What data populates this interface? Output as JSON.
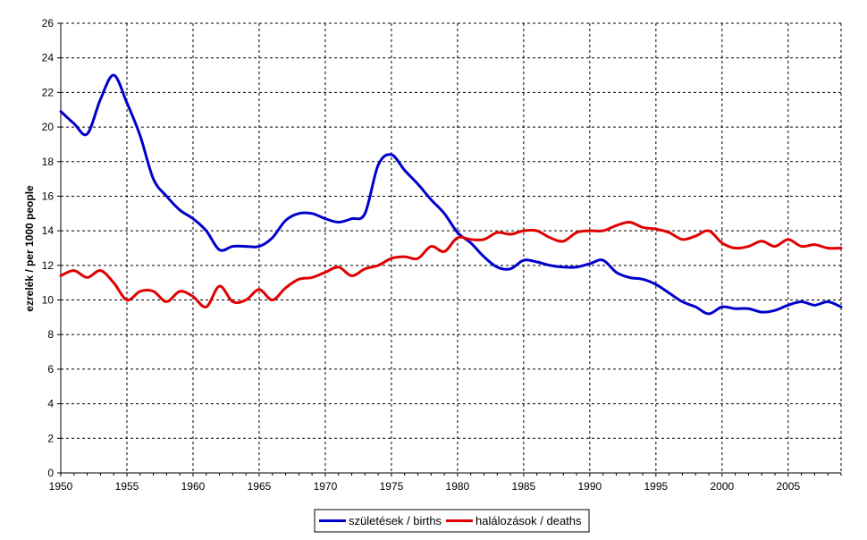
{
  "chart_data": {
    "type": "line",
    "title": "",
    "xlabel": "",
    "ylabel": "ezrelék / per 1000 people",
    "xlim": [
      1950,
      2009
    ],
    "ylim": [
      0,
      26
    ],
    "x_ticks": [
      1950,
      1955,
      1960,
      1965,
      1970,
      1975,
      1980,
      1985,
      1990,
      1995,
      2000,
      2005
    ],
    "y_ticks": [
      0,
      2,
      4,
      6,
      8,
      10,
      12,
      14,
      16,
      18,
      20,
      22,
      24,
      26
    ],
    "grid": true,
    "legend_position": "bottom",
    "x": [
      1950,
      1951,
      1952,
      1953,
      1954,
      1955,
      1956,
      1957,
      1958,
      1959,
      1960,
      1961,
      1962,
      1963,
      1964,
      1965,
      1966,
      1967,
      1968,
      1969,
      1970,
      1971,
      1972,
      1973,
      1974,
      1975,
      1976,
      1977,
      1978,
      1979,
      1980,
      1981,
      1982,
      1983,
      1984,
      1985,
      1986,
      1987,
      1988,
      1989,
      1990,
      1991,
      1992,
      1993,
      1994,
      1995,
      1996,
      1997,
      1998,
      1999,
      2000,
      2001,
      2002,
      2003,
      2004,
      2005,
      2006,
      2007,
      2008,
      2009
    ],
    "series": [
      {
        "name": "születések / births",
        "color": "#0000cc",
        "values": [
          20.9,
          20.2,
          19.6,
          21.6,
          23.0,
          21.4,
          19.5,
          17.0,
          16.0,
          15.2,
          14.7,
          14.0,
          12.9,
          13.1,
          13.1,
          13.1,
          13.6,
          14.6,
          15.0,
          15.0,
          14.7,
          14.5,
          14.7,
          15.0,
          17.8,
          18.4,
          17.5,
          16.7,
          15.8,
          15.0,
          13.9,
          13.3,
          12.5,
          11.9,
          11.8,
          12.3,
          12.2,
          12.0,
          11.9,
          11.9,
          12.1,
          12.3,
          11.6,
          11.3,
          11.2,
          10.9,
          10.4,
          9.9,
          9.6,
          9.2,
          9.6,
          9.5,
          9.5,
          9.3,
          9.4,
          9.7,
          9.9,
          9.7,
          9.9,
          9.6
        ]
      },
      {
        "name": "halálozások / deaths",
        "color": "#e00000",
        "values": [
          11.4,
          11.7,
          11.3,
          11.7,
          11.0,
          10.0,
          10.5,
          10.5,
          9.9,
          10.5,
          10.2,
          9.6,
          10.8,
          9.9,
          10.0,
          10.6,
          10.0,
          10.7,
          11.2,
          11.3,
          11.6,
          11.9,
          11.4,
          11.8,
          12.0,
          12.4,
          12.5,
          12.4,
          13.1,
          12.8,
          13.6,
          13.5,
          13.5,
          13.9,
          13.8,
          14.0,
          14.0,
          13.6,
          13.4,
          13.9,
          14.0,
          14.0,
          14.3,
          14.5,
          14.2,
          14.1,
          13.9,
          13.5,
          13.7,
          14.0,
          13.3,
          13.0,
          13.1,
          13.4,
          13.1,
          13.5,
          13.1,
          13.2,
          13.0,
          13.0
        ]
      }
    ]
  }
}
